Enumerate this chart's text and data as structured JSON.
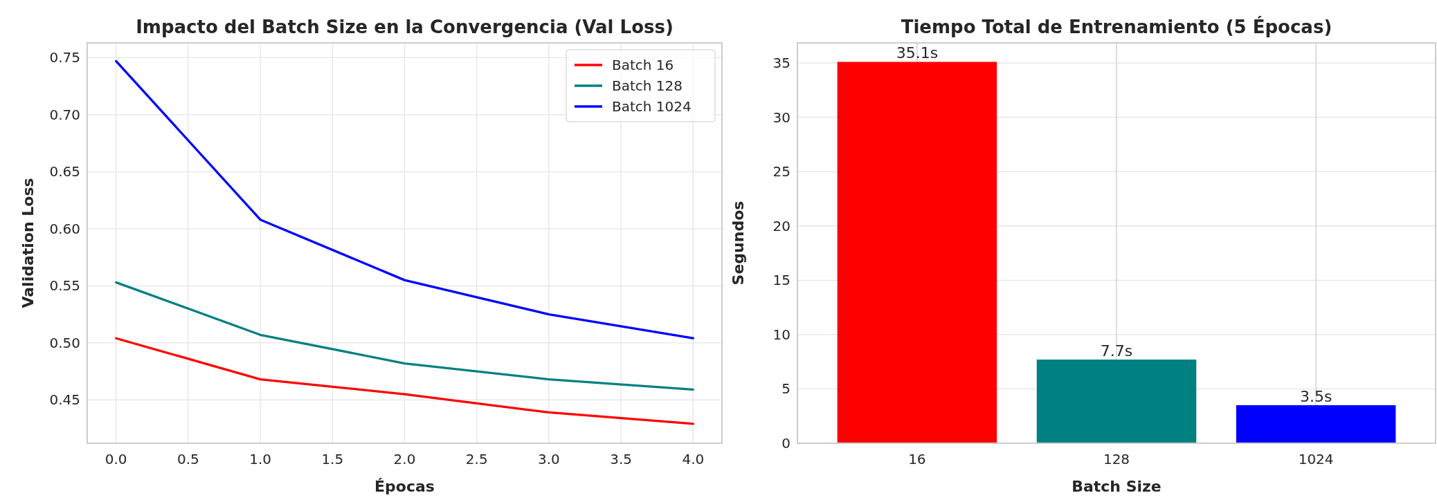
{
  "chart_data": [
    {
      "type": "line",
      "title": "Impacto del Batch Size en la Convergencia (Val Loss)",
      "xlabel": "Épocas",
      "ylabel": "Validation Loss",
      "x": [
        0,
        1,
        2,
        3,
        4
      ],
      "series": [
        {
          "name": "Batch 16",
          "color": "#ff0000",
          "values": [
            0.504,
            0.468,
            0.455,
            0.439,
            0.429
          ]
        },
        {
          "name": "Batch 128",
          "color": "#008080",
          "values": [
            0.553,
            0.507,
            0.482,
            0.468,
            0.459
          ]
        },
        {
          "name": "Batch 1024",
          "color": "#0000ff",
          "values": [
            0.747,
            0.608,
            0.555,
            0.525,
            0.504
          ]
        }
      ],
      "xlim": [
        -0.2,
        4.2
      ],
      "xticks": [
        {
          "value": 0,
          "label": "0.0"
        },
        {
          "value": 0.5,
          "label": "0.5"
        },
        {
          "value": 1,
          "label": "1.0"
        },
        {
          "value": 1.5,
          "label": "1.5"
        },
        {
          "value": 2,
          "label": "2.0"
        },
        {
          "value": 2.5,
          "label": "2.5"
        },
        {
          "value": 3,
          "label": "3.0"
        },
        {
          "value": 3.5,
          "label": "3.5"
        },
        {
          "value": 4,
          "label": "4.0"
        }
      ],
      "ylim": [
        0.412,
        0.763
      ],
      "yticks": [
        {
          "value": 0.45,
          "label": "0.45"
        },
        {
          "value": 0.5,
          "label": "0.50"
        },
        {
          "value": 0.55,
          "label": "0.55"
        },
        {
          "value": 0.6,
          "label": "0.60"
        },
        {
          "value": 0.65,
          "label": "0.65"
        },
        {
          "value": 0.7,
          "label": "0.70"
        },
        {
          "value": 0.75,
          "label": "0.75"
        }
      ],
      "grid": true,
      "legend": "top right",
      "marker": "none",
      "line_style": "solid"
    },
    {
      "type": "bar",
      "title": "Tiempo Total de Entrenamiento (5 Épocas)",
      "xlabel": "Batch Size",
      "ylabel": "Segundos",
      "categories": [
        "16",
        "128",
        "1024"
      ],
      "values": [
        35.1,
        7.7,
        3.5
      ],
      "colors": [
        "#ff0000",
        "#008080",
        "#0000ff"
      ],
      "value_labels": [
        "35.1s",
        "7.7s",
        "3.5s"
      ],
      "ylim": [
        0,
        36.85
      ],
      "yticks": [
        0,
        5,
        10,
        15,
        20,
        25,
        30,
        35
      ],
      "grid": true
    }
  ]
}
